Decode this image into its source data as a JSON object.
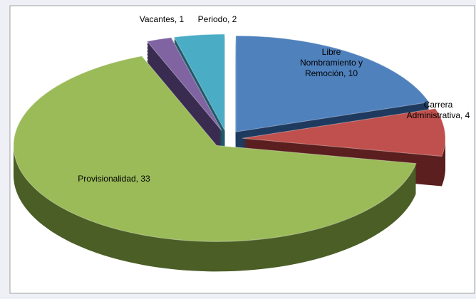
{
  "chart_data": {
    "type": "pie",
    "values": [
      10,
      4,
      33,
      1,
      2
    ],
    "value_labels": [
      "Libre Nombramiento y Remoción, 10",
      "Carrera Administrativa, 4",
      "Provisionalidad, 33",
      "Vacantes, 1",
      "Periodo, 2"
    ],
    "colors": [
      "#4f81bd",
      "#c0504d",
      "#9bbb59",
      "#8064a2",
      "#4bacc6"
    ],
    "side_colors": [
      "#1f3a5f",
      "#5a1f1e",
      "#4a5e26",
      "#3a2c50",
      "#1f5a68"
    ],
    "exploded": true,
    "three_d": true
  }
}
